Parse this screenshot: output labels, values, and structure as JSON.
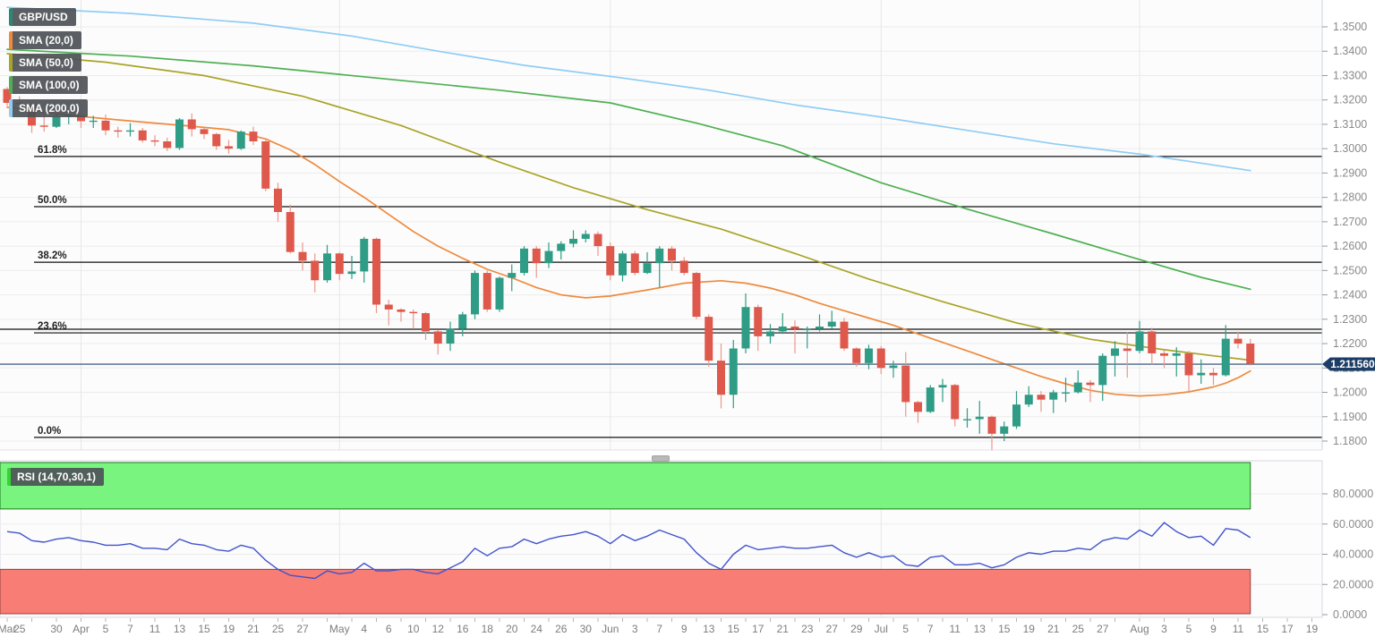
{
  "instrument": {
    "symbol_label": "GBP/USD"
  },
  "indicators": {
    "sma_labels": [
      "SMA (20,0)",
      "SMA (50,0)",
      "SMA (100,0)",
      "SMA (200,0)"
    ],
    "rsi_label": "RSI (14,70,30,1)"
  },
  "colors": {
    "candle_up": "#2f9c85",
    "candle_down": "#de584c",
    "wick_down": "#e9998d",
    "sma20": "#ef8a3d",
    "sma50": "#a9a426",
    "sma100": "#4db052",
    "sma200": "#8fcdf4",
    "rsi_line": "#4053cc",
    "overbought_fill": "#79f47e",
    "overbought_border": "#217a21",
    "oversold_fill": "#f87d74",
    "oversold_border": "#93413c",
    "current_price_line": "#4a6785",
    "price_tag_bg": "#1c3d66",
    "fib_line": "#111111",
    "grid": "#ececec",
    "axis_text": "#8a8a8a",
    "badge_symbol_accent": "#2a8876",
    "badge_rsi_accent": "#35d435",
    "panel_border": "#d3d9e2"
  },
  "price_axis": {
    "ticks": [
      "1.3500",
      "1.3400",
      "1.3300",
      "1.3200",
      "1.3100",
      "1.3000",
      "1.2900",
      "1.2800",
      "1.2700",
      "1.2600",
      "1.2500",
      "1.2400",
      "1.2300",
      "1.2200",
      "1.2100",
      "1.2000",
      "1.1900",
      "1.1800"
    ],
    "tick_values": [
      1.35,
      1.34,
      1.33,
      1.32,
      1.31,
      1.3,
      1.29,
      1.28,
      1.27,
      1.26,
      1.25,
      1.24,
      1.23,
      1.22,
      1.21,
      1.2,
      1.19,
      1.18
    ]
  },
  "current_price": {
    "label": "1.211560",
    "value": 1.21156
  },
  "fib_levels": [
    {
      "label": "61.8%",
      "price": 1.2968
    },
    {
      "label": "50.0%",
      "price": 1.2762
    },
    {
      "label": "38.2%",
      "price": 1.2534
    },
    {
      "label": "23.6%",
      "price": 1.2244
    },
    {
      "label": "0.0%",
      "price": 1.1815
    }
  ],
  "support_line_price": 1.2259,
  "time_axis": {
    "labels": [
      {
        "i": 0,
        "t": "Mar"
      },
      {
        "i": 1,
        "t": "25"
      },
      {
        "i": 4,
        "t": "30"
      },
      {
        "i": 6,
        "t": "Apr"
      },
      {
        "i": 8,
        "t": "5"
      },
      {
        "i": 10,
        "t": "7"
      },
      {
        "i": 12,
        "t": "11"
      },
      {
        "i": 14,
        "t": "13"
      },
      {
        "i": 16,
        "t": "15"
      },
      {
        "i": 18,
        "t": "19"
      },
      {
        "i": 20,
        "t": "21"
      },
      {
        "i": 22,
        "t": "25"
      },
      {
        "i": 24,
        "t": "27"
      },
      {
        "i": 27,
        "t": "May"
      },
      {
        "i": 29,
        "t": "4"
      },
      {
        "i": 31,
        "t": "6"
      },
      {
        "i": 33,
        "t": "10"
      },
      {
        "i": 35,
        "t": "12"
      },
      {
        "i": 37,
        "t": "16"
      },
      {
        "i": 39,
        "t": "18"
      },
      {
        "i": 41,
        "t": "20"
      },
      {
        "i": 43,
        "t": "24"
      },
      {
        "i": 45,
        "t": "26"
      },
      {
        "i": 47,
        "t": "30"
      },
      {
        "i": 49,
        "t": "Jun"
      },
      {
        "i": 51,
        "t": "3"
      },
      {
        "i": 53,
        "t": "7"
      },
      {
        "i": 55,
        "t": "9"
      },
      {
        "i": 57,
        "t": "13"
      },
      {
        "i": 59,
        "t": "15"
      },
      {
        "i": 61,
        "t": "17"
      },
      {
        "i": 63,
        "t": "21"
      },
      {
        "i": 65,
        "t": "23"
      },
      {
        "i": 67,
        "t": "27"
      },
      {
        "i": 69,
        "t": "29"
      },
      {
        "i": 71,
        "t": "Jul"
      },
      {
        "i": 73,
        "t": "5"
      },
      {
        "i": 75,
        "t": "7"
      },
      {
        "i": 77,
        "t": "11"
      },
      {
        "i": 79,
        "t": "13"
      },
      {
        "i": 81,
        "t": "15"
      },
      {
        "i": 83,
        "t": "19"
      },
      {
        "i": 85,
        "t": "21"
      },
      {
        "i": 87,
        "t": "25"
      },
      {
        "i": 89,
        "t": "27"
      },
      {
        "i": 92,
        "t": "Aug"
      },
      {
        "i": 94,
        "t": "3"
      },
      {
        "i": 96,
        "t": "5"
      },
      {
        "i": 98,
        "t": "9"
      },
      {
        "i": 100,
        "t": "11"
      },
      {
        "i": 102,
        "t": "15"
      },
      {
        "i": 104,
        "t": "17"
      },
      {
        "i": 106,
        "t": "19"
      }
    ],
    "month_grid_indices": [
      6,
      27,
      49,
      71,
      92
    ]
  },
  "chart_data": {
    "type": "candlestick",
    "title": "GBP/USD daily candles with SMA(20/50/100/200), Fibonacci retracement levels and RSI(14,70,30,1)",
    "price_range_visible": [
      1.1753,
      1.361
    ],
    "candles_ohlc": [
      [
        1.3245,
        1.3253,
        1.3175,
        1.3188
      ],
      [
        1.3188,
        1.3215,
        1.316,
        1.3183
      ],
      [
        1.3183,
        1.319,
        1.3065,
        1.3095
      ],
      [
        1.3095,
        1.316,
        1.307,
        1.309
      ],
      [
        1.309,
        1.3145,
        1.3085,
        1.3133
      ],
      [
        1.3133,
        1.3155,
        1.31,
        1.3138
      ],
      [
        1.3138,
        1.315,
        1.3085,
        1.3113
      ],
      [
        1.3113,
        1.3135,
        1.3085,
        1.3115
      ],
      [
        1.3115,
        1.314,
        1.3055,
        1.3075
      ],
      [
        1.3075,
        1.309,
        1.3045,
        1.3073
      ],
      [
        1.3073,
        1.3105,
        1.305,
        1.3075
      ],
      [
        1.3075,
        1.3085,
        1.3025,
        1.3034
      ],
      [
        1.3034,
        1.3055,
        1.301,
        1.303
      ],
      [
        1.303,
        1.3045,
        1.299,
        1.3003
      ],
      [
        1.3003,
        1.3125,
        1.2995,
        1.312
      ],
      [
        1.312,
        1.3145,
        1.305,
        1.308
      ],
      [
        1.308,
        1.3085,
        1.304,
        1.306
      ],
      [
        1.306,
        1.3065,
        1.2995,
        1.301
      ],
      [
        1.301,
        1.3035,
        1.298,
        1.3
      ],
      [
        1.3,
        1.3075,
        1.2995,
        1.307
      ],
      [
        1.307,
        1.309,
        1.3015,
        1.303
      ],
      [
        1.303,
        1.3035,
        1.2825,
        1.2836
      ],
      [
        1.2836,
        1.286,
        1.27,
        1.274
      ],
      [
        1.274,
        1.277,
        1.257,
        1.2576
      ],
      [
        1.2576,
        1.2615,
        1.25,
        1.254
      ],
      [
        1.254,
        1.257,
        1.241,
        1.246
      ],
      [
        1.246,
        1.2605,
        1.245,
        1.257
      ],
      [
        1.257,
        1.2575,
        1.246,
        1.2486
      ],
      [
        1.2486,
        1.256,
        1.2465,
        1.2496
      ],
      [
        1.2496,
        1.2638,
        1.245,
        1.263
      ],
      [
        1.263,
        1.2635,
        1.2325,
        1.236
      ],
      [
        1.236,
        1.238,
        1.2275,
        1.234
      ],
      [
        1.234,
        1.2345,
        1.229,
        1.233
      ],
      [
        1.233,
        1.234,
        1.226,
        1.2325
      ],
      [
        1.2325,
        1.233,
        1.2215,
        1.225
      ],
      [
        1.225,
        1.2255,
        1.2155,
        1.22
      ],
      [
        1.22,
        1.229,
        1.217,
        1.226
      ],
      [
        1.226,
        1.233,
        1.223,
        1.232
      ],
      [
        1.232,
        1.25,
        1.23,
        1.249
      ],
      [
        1.249,
        1.25,
        1.233,
        1.234
      ],
      [
        1.234,
        1.2475,
        1.233,
        1.247
      ],
      [
        1.247,
        1.2525,
        1.2415,
        1.249
      ],
      [
        1.249,
        1.26,
        1.248,
        1.259
      ],
      [
        1.259,
        1.26,
        1.247,
        1.253
      ],
      [
        1.253,
        1.2615,
        1.251,
        1.258
      ],
      [
        1.258,
        1.262,
        1.2545,
        1.261
      ],
      [
        1.261,
        1.2665,
        1.2595,
        1.263
      ],
      [
        1.263,
        1.2665,
        1.2615,
        1.265
      ],
      [
        1.265,
        1.266,
        1.256,
        1.26
      ],
      [
        1.26,
        1.2615,
        1.246,
        1.248
      ],
      [
        1.248,
        1.258,
        1.2455,
        1.257
      ],
      [
        1.257,
        1.258,
        1.248,
        1.249
      ],
      [
        1.249,
        1.2575,
        1.2485,
        1.253
      ],
      [
        1.253,
        1.26,
        1.243,
        1.259
      ],
      [
        1.259,
        1.26,
        1.25,
        1.254
      ],
      [
        1.254,
        1.2555,
        1.248,
        1.249
      ],
      [
        1.249,
        1.2495,
        1.23,
        1.231
      ],
      [
        1.231,
        1.232,
        1.2105,
        1.213
      ],
      [
        1.213,
        1.22,
        1.1934,
        1.199
      ],
      [
        1.199,
        1.2215,
        1.1935,
        1.218
      ],
      [
        1.218,
        1.2406,
        1.216,
        1.235
      ],
      [
        1.235,
        1.236,
        1.217,
        1.223
      ],
      [
        1.223,
        1.228,
        1.22,
        1.225
      ],
      [
        1.225,
        1.2325,
        1.224,
        1.227
      ],
      [
        1.227,
        1.2295,
        1.216,
        1.226
      ],
      [
        1.226,
        1.227,
        1.218,
        1.226
      ],
      [
        1.226,
        1.232,
        1.225,
        1.227
      ],
      [
        1.227,
        1.2335,
        1.226,
        1.229
      ],
      [
        1.229,
        1.2305,
        1.217,
        1.218
      ],
      [
        1.218,
        1.2185,
        1.2105,
        1.212
      ],
      [
        1.212,
        1.2195,
        1.2095,
        1.218
      ],
      [
        1.218,
        1.219,
        1.2075,
        1.21
      ],
      [
        1.21,
        1.213,
        1.206,
        1.211
      ],
      [
        1.211,
        1.2165,
        1.19,
        1.196
      ],
      [
        1.196,
        1.1965,
        1.1875,
        1.192
      ],
      [
        1.192,
        1.203,
        1.1915,
        1.202
      ],
      [
        1.202,
        1.2055,
        1.196,
        1.203
      ],
      [
        1.203,
        1.2035,
        1.186,
        1.189
      ],
      [
        1.189,
        1.1935,
        1.1855,
        1.189
      ],
      [
        1.189,
        1.1965,
        1.183,
        1.19
      ],
      [
        1.19,
        1.1905,
        1.176,
        1.183
      ],
      [
        1.183,
        1.188,
        1.18,
        1.186
      ],
      [
        1.186,
        1.2005,
        1.185,
        1.195
      ],
      [
        1.195,
        1.2025,
        1.194,
        1.199
      ],
      [
        1.199,
        1.2005,
        1.192,
        1.197
      ],
      [
        1.197,
        1.201,
        1.1915,
        1.2
      ],
      [
        1.2,
        1.206,
        1.196,
        1.2
      ],
      [
        1.2,
        1.209,
        1.1995,
        1.204
      ],
      [
        1.204,
        1.205,
        1.196,
        1.203
      ],
      [
        1.203,
        1.216,
        1.1965,
        1.215
      ],
      [
        1.215,
        1.221,
        1.2065,
        1.218
      ],
      [
        1.218,
        1.2245,
        1.206,
        1.217
      ],
      [
        1.217,
        1.2293,
        1.216,
        1.225
      ],
      [
        1.225,
        1.2265,
        1.2115,
        1.216
      ],
      [
        1.216,
        1.2175,
        1.21,
        1.215
      ],
      [
        1.215,
        1.2185,
        1.2065,
        1.216
      ],
      [
        1.216,
        1.217,
        1.2005,
        1.207
      ],
      [
        1.207,
        1.2135,
        1.2035,
        1.208
      ],
      [
        1.208,
        1.21,
        1.203,
        1.207
      ],
      [
        1.207,
        1.2276,
        1.2065,
        1.222
      ],
      [
        1.222,
        1.225,
        1.218,
        1.22
      ],
      [
        1.22,
        1.222,
        1.211,
        1.2116
      ]
    ],
    "sma20": [
      [
        0,
        1.317
      ],
      [
        3,
        1.315
      ],
      [
        6,
        1.3132
      ],
      [
        9,
        1.3118
      ],
      [
        12,
        1.3105
      ],
      [
        15,
        1.3092
      ],
      [
        18,
        1.3078
      ],
      [
        21,
        1.304
      ],
      [
        23,
        1.2995
      ],
      [
        25,
        1.2935
      ],
      [
        27,
        1.2865
      ],
      [
        29,
        1.28
      ],
      [
        31,
        1.273
      ],
      [
        33,
        1.266
      ],
      [
        35,
        1.26
      ],
      [
        37,
        1.255
      ],
      [
        39,
        1.2505
      ],
      [
        41,
        1.247
      ],
      [
        43,
        1.243
      ],
      [
        45,
        1.24
      ],
      [
        47,
        1.2388
      ],
      [
        49,
        1.2395
      ],
      [
        52,
        1.242
      ],
      [
        55,
        1.2448
      ],
      [
        58,
        1.2458
      ],
      [
        60,
        1.2448
      ],
      [
        62,
        1.2428
      ],
      [
        64,
        1.24
      ],
      [
        66,
        1.2365
      ],
      [
        68,
        1.2335
      ],
      [
        70,
        1.2305
      ],
      [
        72,
        1.2275
      ],
      [
        74,
        1.224
      ],
      [
        76,
        1.2205
      ],
      [
        78,
        1.217
      ],
      [
        80,
        1.2135
      ],
      [
        82,
        1.21
      ],
      [
        84,
        1.2065
      ],
      [
        86,
        1.2035
      ],
      [
        88,
        1.2008
      ],
      [
        90,
        1.1992
      ],
      [
        92,
        1.1985
      ],
      [
        94,
        1.199
      ],
      [
        96,
        1.2002
      ],
      [
        98,
        1.2022
      ],
      [
        99,
        1.2038
      ],
      [
        100,
        1.206
      ],
      [
        101,
        1.2088
      ]
    ],
    "sma50": [
      [
        0,
        1.339
      ],
      [
        8,
        1.3355
      ],
      [
        16,
        1.33
      ],
      [
        24,
        1.3215
      ],
      [
        32,
        1.3095
      ],
      [
        40,
        1.2945
      ],
      [
        46,
        1.284
      ],
      [
        52,
        1.275
      ],
      [
        58,
        1.267
      ],
      [
        64,
        1.257
      ],
      [
        70,
        1.2465
      ],
      [
        76,
        1.2372
      ],
      [
        82,
        1.2285
      ],
      [
        88,
        1.2218
      ],
      [
        94,
        1.2175
      ],
      [
        98,
        1.215
      ],
      [
        101,
        1.2132
      ]
    ],
    "sma100": [
      [
        0,
        1.3408
      ],
      [
        10,
        1.338
      ],
      [
        20,
        1.334
      ],
      [
        30,
        1.329
      ],
      [
        40,
        1.324
      ],
      [
        49,
        1.3188
      ],
      [
        56,
        1.3105
      ],
      [
        63,
        1.3012
      ],
      [
        71,
        1.286
      ],
      [
        78,
        1.2752
      ],
      [
        85,
        1.265
      ],
      [
        92,
        1.2545
      ],
      [
        97,
        1.2472
      ],
      [
        101,
        1.2423
      ]
    ],
    "sma200": [
      [
        0,
        1.358
      ],
      [
        10,
        1.3555
      ],
      [
        20,
        1.3515
      ],
      [
        28,
        1.3462
      ],
      [
        35,
        1.34
      ],
      [
        42,
        1.3342
      ],
      [
        50,
        1.329
      ],
      [
        57,
        1.324
      ],
      [
        64,
        1.318
      ],
      [
        71,
        1.313
      ],
      [
        78,
        1.3075
      ],
      [
        85,
        1.302
      ],
      [
        92,
        1.2978
      ],
      [
        96,
        1.2948
      ],
      [
        101,
        1.291
      ]
    ],
    "rsi": {
      "params": "14,70,30,1",
      "overbought": 70,
      "oversold": 30,
      "axis_ticks": [
        "80.0000",
        "60.0000",
        "40.0000",
        "20.0000",
        "0.0000"
      ],
      "axis_tick_values": [
        80,
        60,
        40,
        20,
        0
      ],
      "values": [
        55,
        54,
        49,
        48,
        50,
        51,
        49,
        48,
        46,
        46,
        47,
        44,
        44,
        43,
        50,
        47,
        46,
        43,
        42,
        46,
        44,
        36,
        30,
        26,
        25,
        24,
        29,
        27,
        28,
        34,
        29,
        29,
        30,
        30,
        28,
        27,
        31,
        35,
        44,
        39,
        44,
        45,
        50,
        47,
        50,
        52,
        53,
        55,
        52,
        47,
        53,
        49,
        52,
        56,
        53,
        50,
        41,
        34,
        30,
        40,
        46,
        43,
        44,
        45,
        44,
        44,
        45,
        46,
        41,
        38,
        41,
        38,
        39,
        33,
        32,
        38,
        39,
        33,
        33,
        34,
        31,
        33,
        38,
        41,
        40,
        42,
        42,
        44,
        43,
        49,
        51,
        50,
        56,
        52,
        61,
        55,
        51,
        52,
        46,
        57,
        56,
        51
      ]
    }
  }
}
